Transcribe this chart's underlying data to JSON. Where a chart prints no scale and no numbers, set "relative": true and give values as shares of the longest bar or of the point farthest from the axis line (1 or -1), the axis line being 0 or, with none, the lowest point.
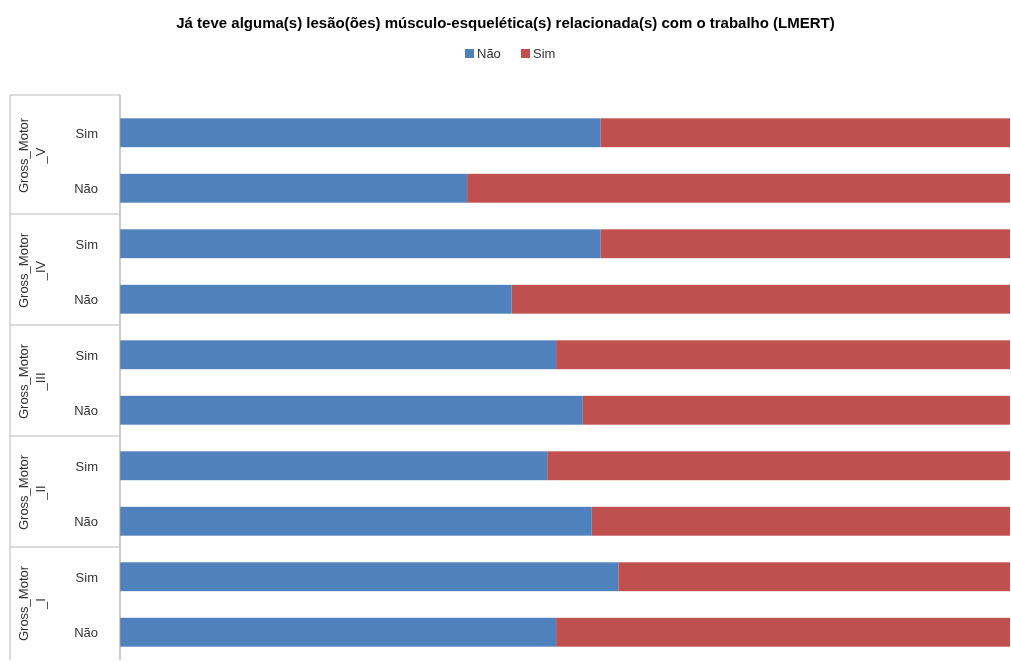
{
  "chart_data": {
    "type": "bar",
    "title": "Já teve alguma(s) lesão(ões) músculo-esquelética(s) relacionada(s) com o trabalho (LMERT)",
    "orientation": "horizontal",
    "stacked": true,
    "relative": true,
    "legend": "top",
    "grid": false,
    "categories": [
      "Sim",
      "Não",
      "Sim",
      "Não",
      "Sim",
      "Não",
      "Sim",
      "Não",
      "Sim",
      "Não"
    ],
    "annotations": [
      "Gross_Motor_V",
      "Gross_Motor_IV",
      "Gross_Motor_III",
      "Gross_Motor_II",
      "Gross_Motor_I"
    ],
    "series": [
      {
        "name": "Não",
        "color": "#4f81bd",
        "values": [
          0.54,
          0.39,
          0.54,
          0.44,
          0.49,
          0.52,
          0.48,
          0.53,
          0.56,
          0.49
        ]
      },
      {
        "name": "Sim",
        "color": "#c0504d",
        "values": [
          0.46,
          0.61,
          0.46,
          0.56,
          0.51,
          0.48,
          0.52,
          0.47,
          0.44,
          0.51
        ]
      }
    ]
  }
}
